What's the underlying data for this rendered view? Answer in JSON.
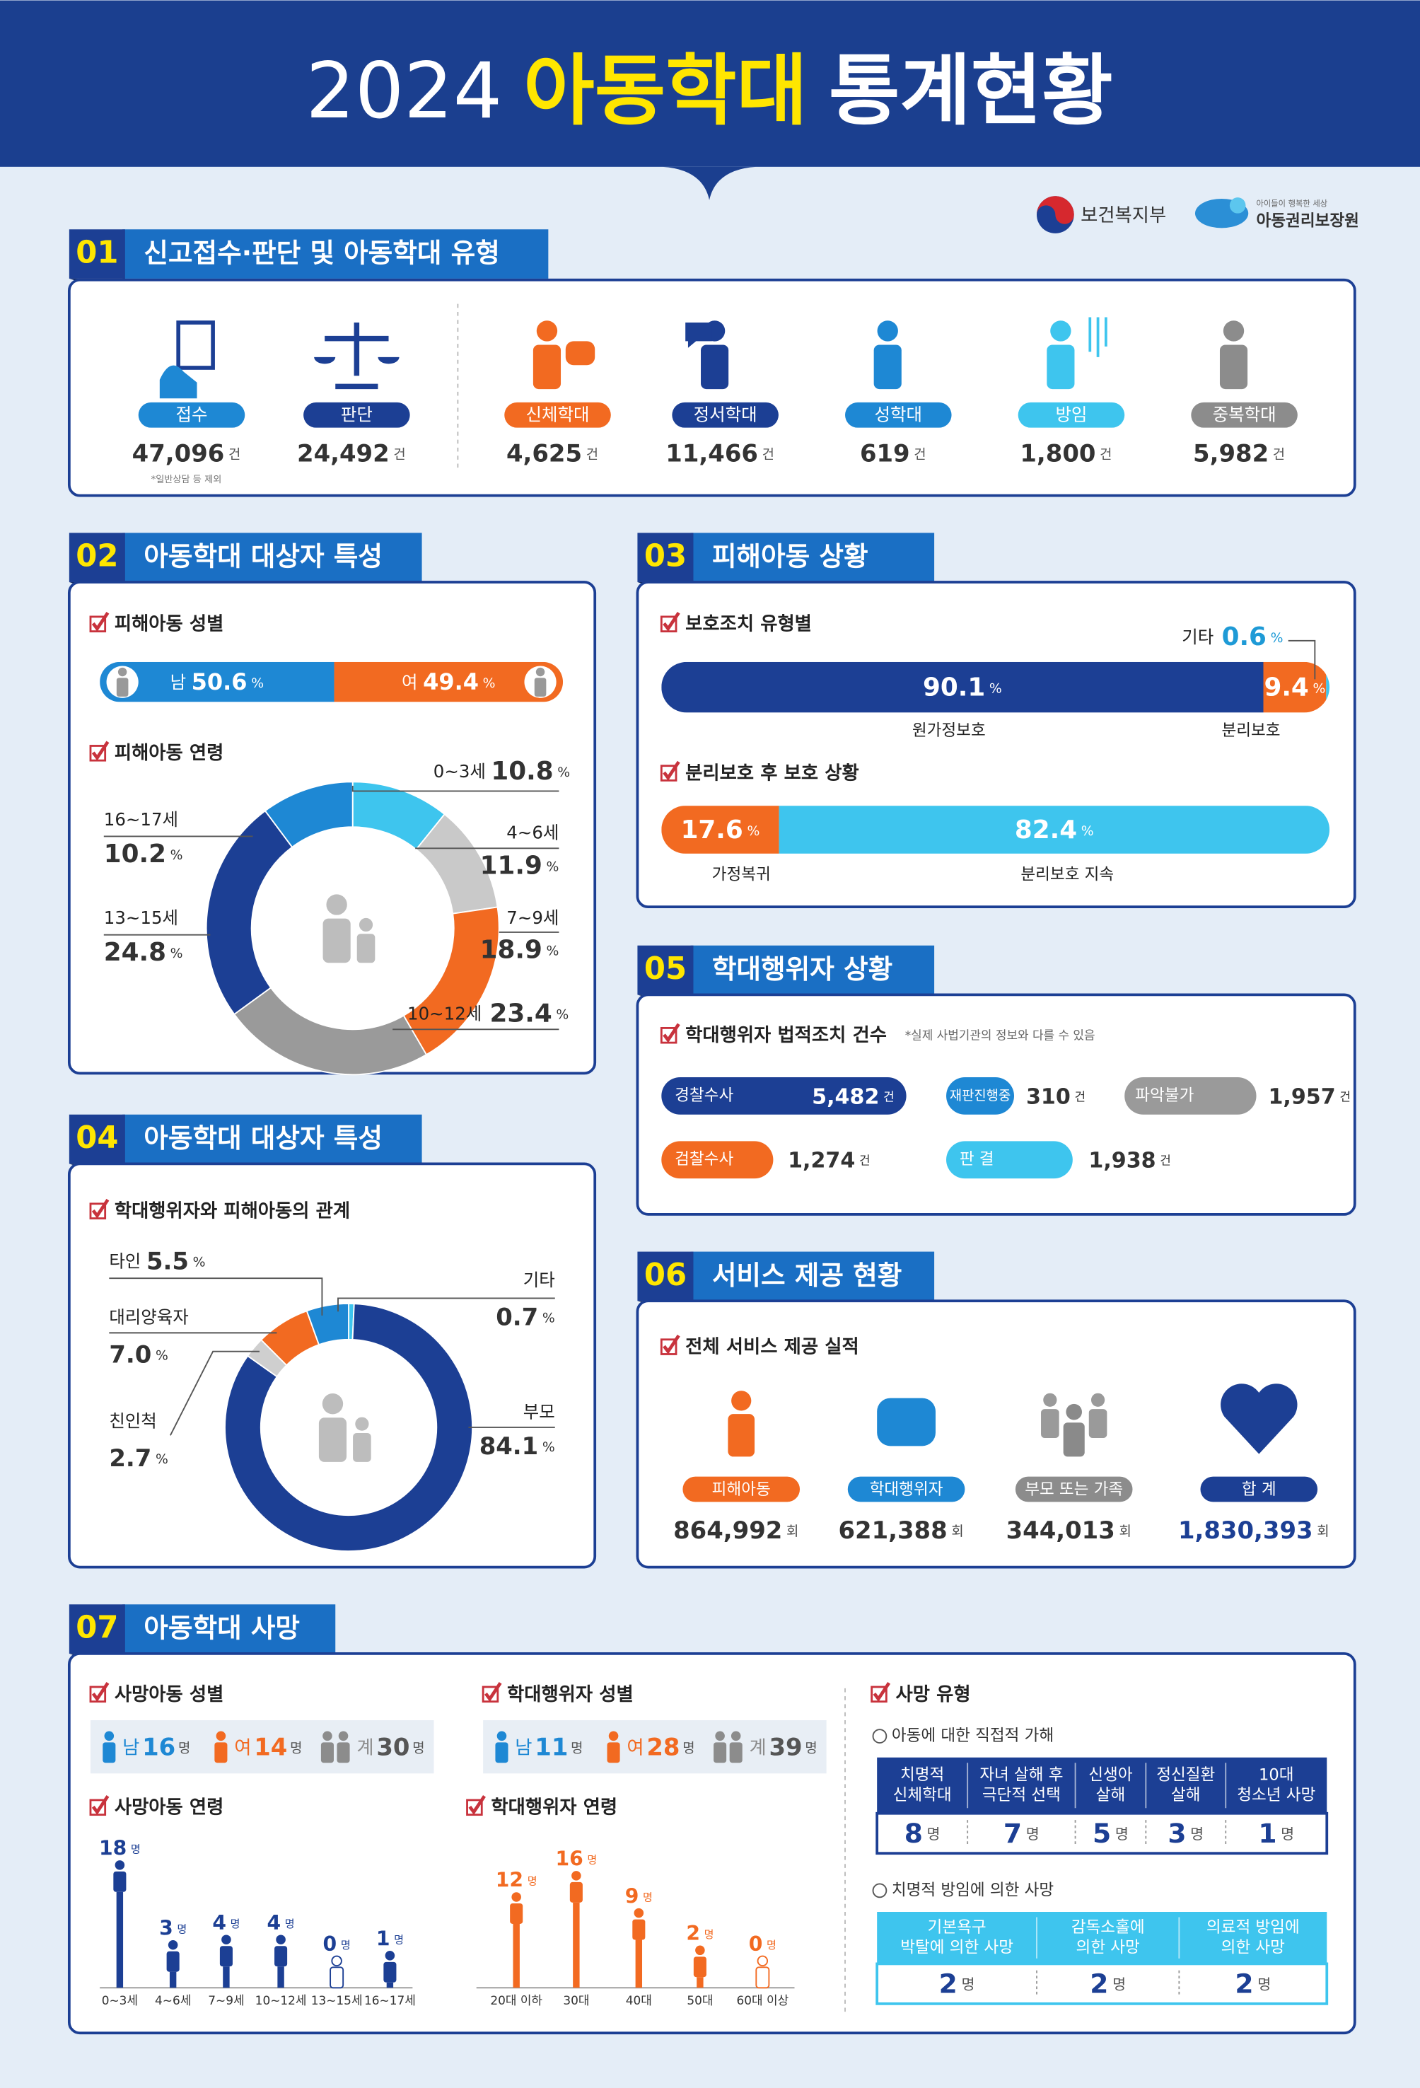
{
  "header": {
    "year": "2024",
    "highlight": "아동학대",
    "rest": "통계현황"
  },
  "logos": {
    "ministry": "보건복지부",
    "agency": "아동권리보장원",
    "agency_tagline": "아이들이 행복한 세상"
  },
  "s01": {
    "number": "01",
    "title": "신고접수·판단 및 아동학대 유형",
    "items": [
      {
        "label": "접수",
        "value": "47,096",
        "unit": "건",
        "color": "#1e88d4",
        "note": "*일반상담 등 제외"
      },
      {
        "label": "판단",
        "value": "24,492",
        "unit": "건",
        "color": "#1c3f94"
      },
      {
        "label": "신체학대",
        "value": "4,625",
        "unit": "건",
        "color": "#f26a21"
      },
      {
        "label": "정서학대",
        "value": "11,466",
        "unit": "건",
        "color": "#1c3f94"
      },
      {
        "label": "성학대",
        "value": "619",
        "unit": "건",
        "color": "#1e88d4"
      },
      {
        "label": "방임",
        "value": "1,800",
        "unit": "건",
        "color": "#3ec5ee"
      },
      {
        "label": "중복학대",
        "value": "5,982",
        "unit": "건",
        "color": "#8c8c8c"
      }
    ]
  },
  "s02": {
    "number": "02",
    "title": "아동학대 대상자 특성",
    "gender": {
      "heading": "피해아동 성별",
      "unit": "%",
      "series": [
        {
          "name": "남",
          "value": 50.6,
          "color": "#1e88d4"
        },
        {
          "name": "여",
          "value": 49.4,
          "color": "#f26a21"
        }
      ]
    },
    "age": {
      "type": "donut",
      "heading": "피해아동 연령",
      "unit": "%",
      "segments": [
        {
          "name": "0~3세",
          "value": 10.8,
          "color": "#3ec5ee"
        },
        {
          "name": "4~6세",
          "value": 11.9,
          "color": "#c9c9c9"
        },
        {
          "name": "7~9세",
          "value": 18.9,
          "color": "#f26a21"
        },
        {
          "name": "10~12세",
          "value": 23.4,
          "color": "#9a9a9a"
        },
        {
          "name": "13~15세",
          "value": 24.8,
          "color": "#1c3f94"
        },
        {
          "name": "16~17세",
          "value": 10.2,
          "color": "#1e88d4"
        }
      ]
    }
  },
  "s03": {
    "number": "03",
    "title": "피해아동 상황",
    "protection": {
      "heading": "보호조치 유형별",
      "unit": "%",
      "segments": [
        {
          "name": "원가정보호",
          "value": 90.1,
          "color": "#1c3f94"
        },
        {
          "name": "분리보호",
          "value": 9.4,
          "color": "#f26a21"
        },
        {
          "name": "기타",
          "value": 0.6,
          "color": "#3ec5ee"
        }
      ]
    },
    "after": {
      "heading": "분리보호 후 보호 상황",
      "unit": "%",
      "segments": [
        {
          "name": "가정복귀",
          "value": 17.6,
          "color": "#f26a21"
        },
        {
          "name": "분리보호 지속",
          "value": 82.4,
          "color": "#3ec5ee"
        }
      ]
    }
  },
  "s04": {
    "number": "04",
    "title": "아동학대 대상자 특성",
    "type": "donut",
    "heading": "학대행위자와 피해아동의 관계",
    "unit": "%",
    "segments": [
      {
        "name": "기타",
        "value": 0.7,
        "color": "#3ec5ee"
      },
      {
        "name": "부모",
        "value": 84.1,
        "color": "#1c3f94"
      },
      {
        "name": "친인척",
        "value": 2.7,
        "color": "#cfcfcf"
      },
      {
        "name": "대리양육자",
        "value": 7,
        "value_label": "7.0",
        "color": "#f26a21"
      },
      {
        "name": "타인",
        "value": 5.5,
        "color": "#1e88d4"
      }
    ]
  },
  "s05": {
    "number": "05",
    "title": "학대행위자 상황",
    "heading": "학대행위자 법적조치 건수",
    "note": "*실제 사법기관의 정보와 다를 수 있음",
    "unit": "건",
    "items": [
      {
        "label": "경찰수사",
        "value": "5,482",
        "color": "#1c3f94"
      },
      {
        "label": "재판진행중",
        "value": "310",
        "color": "#1e88d4"
      },
      {
        "label": "파악불가",
        "value": "1,957",
        "color": "#9a9a9a"
      },
      {
        "label": "검찰수사",
        "value": "1,274",
        "color": "#f26a21"
      },
      {
        "label": "판 결",
        "value": "1,938",
        "color": "#3ec5ee"
      }
    ]
  },
  "s06": {
    "number": "06",
    "title": "서비스 제공 현황",
    "heading": "전체 서비스 제공 실적",
    "unit": "회",
    "items": [
      {
        "label": "피해아동",
        "value": "864,992",
        "color": "#f26a21"
      },
      {
        "label": "학대행위자",
        "value": "621,388",
        "color": "#1e88d4"
      },
      {
        "label": "부모 또는 가족",
        "value": "344,013",
        "color": "#8c8c8c"
      },
      {
        "label": "합 계",
        "value": "1,830,393",
        "color": "#1c3f94"
      }
    ]
  },
  "s07": {
    "number": "07",
    "title": "아동학대 사망",
    "unit": "명",
    "victim_gender": {
      "heading": "사망아동 성별",
      "items": [
        {
          "label": "남",
          "value": 16,
          "color": "#1e88d4"
        },
        {
          "label": "여",
          "value": 14,
          "color": "#f26a21"
        },
        {
          "label": "계",
          "value": 30,
          "color": "#8c8c8c"
        }
      ]
    },
    "abuser_gender": {
      "heading": "학대행위자 성별",
      "items": [
        {
          "label": "남",
          "value": 11,
          "color": "#1e88d4"
        },
        {
          "label": "여",
          "value": 28,
          "color": "#f26a21"
        },
        {
          "label": "계",
          "value": 39,
          "color": "#8c8c8c"
        }
      ]
    },
    "victim_age": {
      "type": "bar",
      "heading": "사망아동 연령",
      "color": "#1c3f94",
      "categories": [
        "0~3세",
        "4~6세",
        "7~9세",
        "10~12세",
        "13~15세",
        "16~17세"
      ],
      "values": [
        18,
        3,
        4,
        4,
        0,
        1
      ]
    },
    "abuser_age": {
      "type": "bar",
      "heading": "학대행위자 연령",
      "color": "#f26a21",
      "categories": [
        "20대 이하",
        "30대",
        "40대",
        "50대",
        "60대 이상"
      ],
      "values": [
        12,
        16,
        9,
        2,
        0
      ]
    },
    "death_type": {
      "heading": "사망 유형",
      "direct": {
        "heading": "아동에 대한 직접적 가해",
        "color": "#1c3f94",
        "columns": [
          {
            "label": [
              "치명적",
              "신체학대"
            ],
            "value": 8
          },
          {
            "label": [
              "자녀 살해 후",
              "극단적 선택"
            ],
            "value": 7
          },
          {
            "label": [
              "신생아",
              "살해"
            ],
            "value": 5
          },
          {
            "label": [
              "정신질환",
              "살해"
            ],
            "value": 3
          },
          {
            "label": [
              "10대",
              "청소년 사망"
            ],
            "value": 1
          }
        ]
      },
      "neglect": {
        "heading": "치명적 방임에 의한 사망",
        "color": "#3ec5ee",
        "columns": [
          {
            "label": [
              "기본욕구",
              "박탈에 의한 사망"
            ],
            "value": 2
          },
          {
            "label": [
              "감독소홀에",
              "의한 사망"
            ],
            "value": 2
          },
          {
            "label": [
              "의료적 방임에",
              "의한 사망"
            ],
            "value": 2
          }
        ]
      }
    }
  }
}
